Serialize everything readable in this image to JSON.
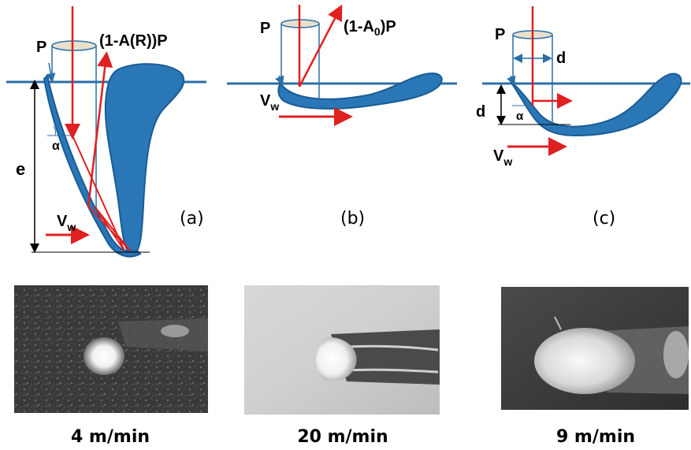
{
  "colors": {
    "melt_blue": "#2a77b8",
    "melt_edge": "#1b5c93",
    "surface_line": "#2c6fa6",
    "laser_red": "#e02020",
    "beam_disc": "#e8e0cc",
    "photo_dark": "#2b2b2b",
    "photo_light": "#e6e6e6"
  },
  "panels": {
    "a": {
      "tag": "(a)",
      "power": "P",
      "reflected": "(1-A(R))P",
      "velocity_main": "V",
      "velocity_sub": "w",
      "depth": "e",
      "angle": "α"
    },
    "b": {
      "tag": "(b)",
      "power": "P",
      "reflected_pre": "(1-A",
      "reflected_sub": "0",
      "reflected_post": ")P",
      "velocity_main": "V",
      "velocity_sub": "w"
    },
    "c": {
      "tag": "(c)",
      "power": "P",
      "diameter": "d",
      "depth": "d",
      "angle": "α",
      "velocity_main": "V",
      "velocity_sub": "w"
    }
  },
  "photos": [
    {
      "speed": "4 m/min",
      "style": "dark-speckled"
    },
    {
      "speed": "20 m/min",
      "style": "light-grey"
    },
    {
      "speed": "9 m/min",
      "style": "dark-grey"
    }
  ]
}
